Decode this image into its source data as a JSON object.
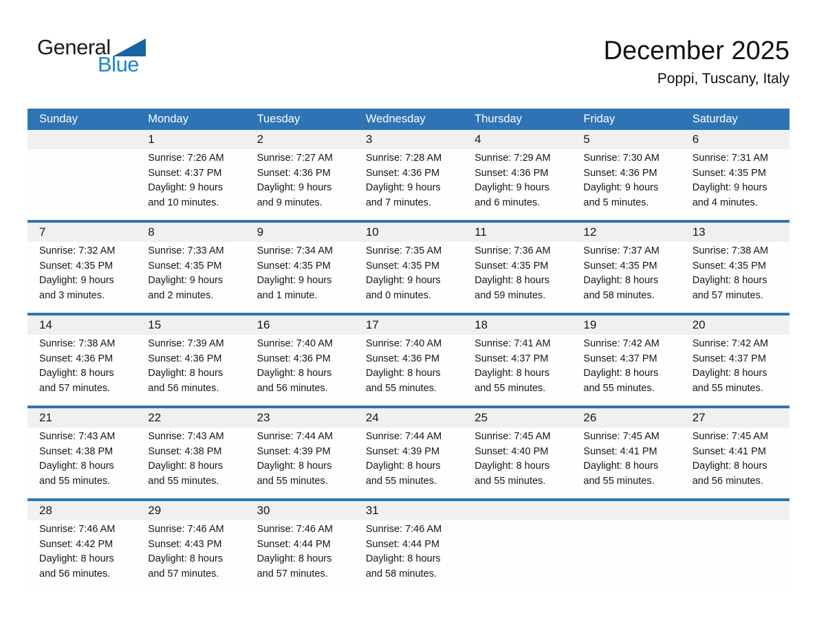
{
  "logo": {
    "part1": "General",
    "part2": "Blue"
  },
  "header": {
    "title": "December 2025",
    "subtitle": "Poppi, Tuscany, Italy"
  },
  "colors": {
    "header_bg": "#2E74B5",
    "separator": "#2E74B5",
    "strip_bg": "#F0F0F0",
    "logo_blue": "#1887C6",
    "logo_triangle": "#17649F"
  },
  "calendar": {
    "weekdays": [
      "Sunday",
      "Monday",
      "Tuesday",
      "Wednesday",
      "Thursday",
      "Friday",
      "Saturday"
    ],
    "weeks": [
      {
        "days": [
          null,
          {
            "date": "1",
            "sunrise": "Sunrise: 7:26 AM",
            "sunset": "Sunset: 4:37 PM",
            "daylight1": "Daylight: 9 hours",
            "daylight2": "and 10 minutes."
          },
          {
            "date": "2",
            "sunrise": "Sunrise: 7:27 AM",
            "sunset": "Sunset: 4:36 PM",
            "daylight1": "Daylight: 9 hours",
            "daylight2": "and 9 minutes."
          },
          {
            "date": "3",
            "sunrise": "Sunrise: 7:28 AM",
            "sunset": "Sunset: 4:36 PM",
            "daylight1": "Daylight: 9 hours",
            "daylight2": "and 7 minutes."
          },
          {
            "date": "4",
            "sunrise": "Sunrise: 7:29 AM",
            "sunset": "Sunset: 4:36 PM",
            "daylight1": "Daylight: 9 hours",
            "daylight2": "and 6 minutes."
          },
          {
            "date": "5",
            "sunrise": "Sunrise: 7:30 AM",
            "sunset": "Sunset: 4:36 PM",
            "daylight1": "Daylight: 9 hours",
            "daylight2": "and 5 minutes."
          },
          {
            "date": "6",
            "sunrise": "Sunrise: 7:31 AM",
            "sunset": "Sunset: 4:35 PM",
            "daylight1": "Daylight: 9 hours",
            "daylight2": "and 4 minutes."
          }
        ]
      },
      {
        "days": [
          {
            "date": "7",
            "sunrise": "Sunrise: 7:32 AM",
            "sunset": "Sunset: 4:35 PM",
            "daylight1": "Daylight: 9 hours",
            "daylight2": "and 3 minutes."
          },
          {
            "date": "8",
            "sunrise": "Sunrise: 7:33 AM",
            "sunset": "Sunset: 4:35 PM",
            "daylight1": "Daylight: 9 hours",
            "daylight2": "and 2 minutes."
          },
          {
            "date": "9",
            "sunrise": "Sunrise: 7:34 AM",
            "sunset": "Sunset: 4:35 PM",
            "daylight1": "Daylight: 9 hours",
            "daylight2": "and 1 minute."
          },
          {
            "date": "10",
            "sunrise": "Sunrise: 7:35 AM",
            "sunset": "Sunset: 4:35 PM",
            "daylight1": "Daylight: 9 hours",
            "daylight2": "and 0 minutes."
          },
          {
            "date": "11",
            "sunrise": "Sunrise: 7:36 AM",
            "sunset": "Sunset: 4:35 PM",
            "daylight1": "Daylight: 8 hours",
            "daylight2": "and 59 minutes."
          },
          {
            "date": "12",
            "sunrise": "Sunrise: 7:37 AM",
            "sunset": "Sunset: 4:35 PM",
            "daylight1": "Daylight: 8 hours",
            "daylight2": "and 58 minutes."
          },
          {
            "date": "13",
            "sunrise": "Sunrise: 7:38 AM",
            "sunset": "Sunset: 4:35 PM",
            "daylight1": "Daylight: 8 hours",
            "daylight2": "and 57 minutes."
          }
        ]
      },
      {
        "days": [
          {
            "date": "14",
            "sunrise": "Sunrise: 7:38 AM",
            "sunset": "Sunset: 4:36 PM",
            "daylight1": "Daylight: 8 hours",
            "daylight2": "and 57 minutes."
          },
          {
            "date": "15",
            "sunrise": "Sunrise: 7:39 AM",
            "sunset": "Sunset: 4:36 PM",
            "daylight1": "Daylight: 8 hours",
            "daylight2": "and 56 minutes."
          },
          {
            "date": "16",
            "sunrise": "Sunrise: 7:40 AM",
            "sunset": "Sunset: 4:36 PM",
            "daylight1": "Daylight: 8 hours",
            "daylight2": "and 56 minutes."
          },
          {
            "date": "17",
            "sunrise": "Sunrise: 7:40 AM",
            "sunset": "Sunset: 4:36 PM",
            "daylight1": "Daylight: 8 hours",
            "daylight2": "and 55 minutes."
          },
          {
            "date": "18",
            "sunrise": "Sunrise: 7:41 AM",
            "sunset": "Sunset: 4:37 PM",
            "daylight1": "Daylight: 8 hours",
            "daylight2": "and 55 minutes."
          },
          {
            "date": "19",
            "sunrise": "Sunrise: 7:42 AM",
            "sunset": "Sunset: 4:37 PM",
            "daylight1": "Daylight: 8 hours",
            "daylight2": "and 55 minutes."
          },
          {
            "date": "20",
            "sunrise": "Sunrise: 7:42 AM",
            "sunset": "Sunset: 4:37 PM",
            "daylight1": "Daylight: 8 hours",
            "daylight2": "and 55 minutes."
          }
        ]
      },
      {
        "days": [
          {
            "date": "21",
            "sunrise": "Sunrise: 7:43 AM",
            "sunset": "Sunset: 4:38 PM",
            "daylight1": "Daylight: 8 hours",
            "daylight2": "and 55 minutes."
          },
          {
            "date": "22",
            "sunrise": "Sunrise: 7:43 AM",
            "sunset": "Sunset: 4:38 PM",
            "daylight1": "Daylight: 8 hours",
            "daylight2": "and 55 minutes."
          },
          {
            "date": "23",
            "sunrise": "Sunrise: 7:44 AM",
            "sunset": "Sunset: 4:39 PM",
            "daylight1": "Daylight: 8 hours",
            "daylight2": "and 55 minutes."
          },
          {
            "date": "24",
            "sunrise": "Sunrise: 7:44 AM",
            "sunset": "Sunset: 4:39 PM",
            "daylight1": "Daylight: 8 hours",
            "daylight2": "and 55 minutes."
          },
          {
            "date": "25",
            "sunrise": "Sunrise: 7:45 AM",
            "sunset": "Sunset: 4:40 PM",
            "daylight1": "Daylight: 8 hours",
            "daylight2": "and 55 minutes."
          },
          {
            "date": "26",
            "sunrise": "Sunrise: 7:45 AM",
            "sunset": "Sunset: 4:41 PM",
            "daylight1": "Daylight: 8 hours",
            "daylight2": "and 55 minutes."
          },
          {
            "date": "27",
            "sunrise": "Sunrise: 7:45 AM",
            "sunset": "Sunset: 4:41 PM",
            "daylight1": "Daylight: 8 hours",
            "daylight2": "and 56 minutes."
          }
        ]
      },
      {
        "days": [
          {
            "date": "28",
            "sunrise": "Sunrise: 7:46 AM",
            "sunset": "Sunset: 4:42 PM",
            "daylight1": "Daylight: 8 hours",
            "daylight2": "and 56 minutes."
          },
          {
            "date": "29",
            "sunrise": "Sunrise: 7:46 AM",
            "sunset": "Sunset: 4:43 PM",
            "daylight1": "Daylight: 8 hours",
            "daylight2": "and 57 minutes."
          },
          {
            "date": "30",
            "sunrise": "Sunrise: 7:46 AM",
            "sunset": "Sunset: 4:44 PM",
            "daylight1": "Daylight: 8 hours",
            "daylight2": "and 57 minutes."
          },
          {
            "date": "31",
            "sunrise": "Sunrise: 7:46 AM",
            "sunset": "Sunset: 4:44 PM",
            "daylight1": "Daylight: 8 hours",
            "daylight2": "and 58 minutes."
          },
          null,
          null,
          null
        ]
      }
    ]
  }
}
